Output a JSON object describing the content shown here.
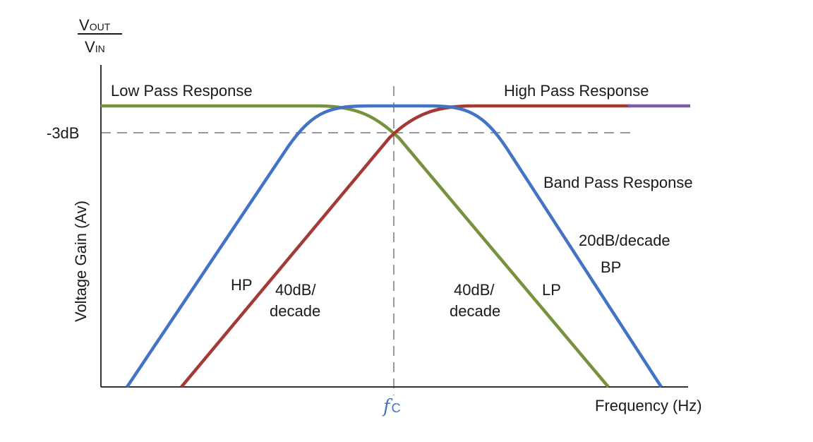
{
  "y_axis": {
    "ratio_numerator_main": "V",
    "ratio_numerator_sub": "OUT",
    "ratio_denominator_main": "V",
    "ratio_denominator_sub": "IN",
    "label": "Voltage Gain (Av)",
    "minus_3db_label": "-3dB"
  },
  "x_axis": {
    "label": "Frequency (Hz)",
    "cutoff_main": "f",
    "cutoff_sub": "C"
  },
  "labels": {
    "low_pass": "Low Pass Response",
    "high_pass": "High Pass Response",
    "band_pass": "Band Pass Response",
    "bp_slope": "20dB/decade",
    "bp_short": "BP",
    "hp_short": "HP",
    "hp_slope_line1": "40dB/",
    "hp_slope_line2": "decade",
    "lp_slope_line1": "40dB/",
    "lp_slope_line2": "decade",
    "lp_short": "LP"
  },
  "colors": {
    "low_pass": "#76923c",
    "high_pass": "#a33a36",
    "band_pass": "#4472c4",
    "axis": "#333333",
    "guide": "#999999",
    "cutoff_label": "#4472c4",
    "extension": "#7b5ea7"
  }
}
